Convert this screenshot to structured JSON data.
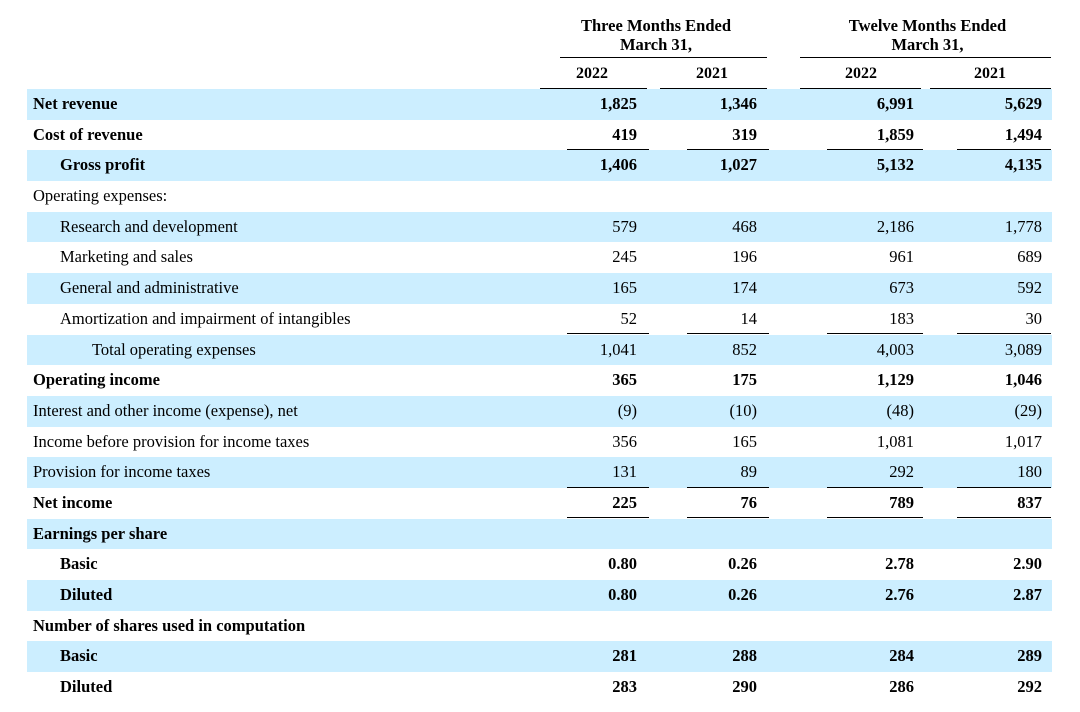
{
  "header": {
    "three_months": "Three Months Ended\nMarch 31,",
    "twelve_months": "Twelve Months Ended\nMarch 31,",
    "years": [
      "2022",
      "2021",
      "2022",
      "2021"
    ]
  },
  "rows": [
    {
      "label": "Net revenue",
      "values": [
        "1,825",
        "1,346",
        "6,991",
        "5,629"
      ],
      "bold": true,
      "indent": 0,
      "shaded": true,
      "rule": "none"
    },
    {
      "label": "Cost of revenue",
      "values": [
        "419",
        "319",
        "1,859",
        "1,494"
      ],
      "bold": true,
      "indent": 0,
      "shaded": false,
      "rule": "single"
    },
    {
      "label": "Gross profit",
      "values": [
        "1,406",
        "1,027",
        "5,132",
        "4,135"
      ],
      "bold": true,
      "indent": 1,
      "shaded": true,
      "rule": "none"
    },
    {
      "label": "Operating expenses:",
      "values": [
        "",
        "",
        "",
        ""
      ],
      "bold": false,
      "indent": 0,
      "shaded": false,
      "rule": "none"
    },
    {
      "label": "Research and development",
      "values": [
        "579",
        "468",
        "2,186",
        "1,778"
      ],
      "bold": false,
      "indent": 1,
      "shaded": true,
      "rule": "none"
    },
    {
      "label": "Marketing and sales",
      "values": [
        "245",
        "196",
        "961",
        "689"
      ],
      "bold": false,
      "indent": 1,
      "shaded": false,
      "rule": "none"
    },
    {
      "label": "General and administrative",
      "values": [
        "165",
        "174",
        "673",
        "592"
      ],
      "bold": false,
      "indent": 1,
      "shaded": true,
      "rule": "none"
    },
    {
      "label": "Amortization and impairment of intangibles",
      "values": [
        "52",
        "14",
        "183",
        "30"
      ],
      "bold": false,
      "indent": 1,
      "shaded": false,
      "rule": "single"
    },
    {
      "label": "Total operating expenses",
      "values": [
        "1,041",
        "852",
        "4,003",
        "3,089"
      ],
      "bold": false,
      "indent": 2,
      "shaded": true,
      "rule": "none"
    },
    {
      "label": "Operating income",
      "values": [
        "365",
        "175",
        "1,129",
        "1,046"
      ],
      "bold": true,
      "indent": 0,
      "shaded": false,
      "rule": "none"
    },
    {
      "label": "Interest and other income (expense), net",
      "values": [
        "(9)",
        "(10)",
        "(48)",
        "(29)"
      ],
      "bold": false,
      "indent": 0,
      "shaded": true,
      "rule": "none"
    },
    {
      "label": "Income before provision for income taxes",
      "values": [
        "356",
        "165",
        "1,081",
        "1,017"
      ],
      "bold": false,
      "indent": 0,
      "shaded": false,
      "rule": "none"
    },
    {
      "label": "Provision for income taxes",
      "values": [
        "131",
        "89",
        "292",
        "180"
      ],
      "bold": false,
      "indent": 0,
      "shaded": true,
      "rule": "single"
    },
    {
      "label": "Net income",
      "values": [
        "225",
        "76",
        "789",
        "837"
      ],
      "bold": true,
      "indent": 0,
      "shaded": false,
      "rule": "double"
    },
    {
      "label": "Earnings per share",
      "values": [
        "",
        "",
        "",
        ""
      ],
      "bold": true,
      "indent": 0,
      "shaded": true,
      "rule": "none"
    },
    {
      "label": "Basic",
      "values": [
        "0.80",
        "0.26",
        "2.78",
        "2.90"
      ],
      "bold": true,
      "indent": 1,
      "shaded": false,
      "rule": "none"
    },
    {
      "label": "Diluted",
      "values": [
        "0.80",
        "0.26",
        "2.76",
        "2.87"
      ],
      "bold": true,
      "indent": 1,
      "shaded": true,
      "rule": "none"
    },
    {
      "label": "Number of shares used in computation",
      "values": [
        "",
        "",
        "",
        ""
      ],
      "bold": true,
      "indent": 0,
      "shaded": false,
      "rule": "none"
    },
    {
      "label": "Basic",
      "values": [
        "281",
        "288",
        "284",
        "289"
      ],
      "bold": true,
      "indent": 1,
      "shaded": true,
      "rule": "none"
    },
    {
      "label": "Diluted",
      "values": [
        "283",
        "290",
        "286",
        "292"
      ],
      "bold": true,
      "indent": 1,
      "shaded": false,
      "rule": "none"
    }
  ]
}
